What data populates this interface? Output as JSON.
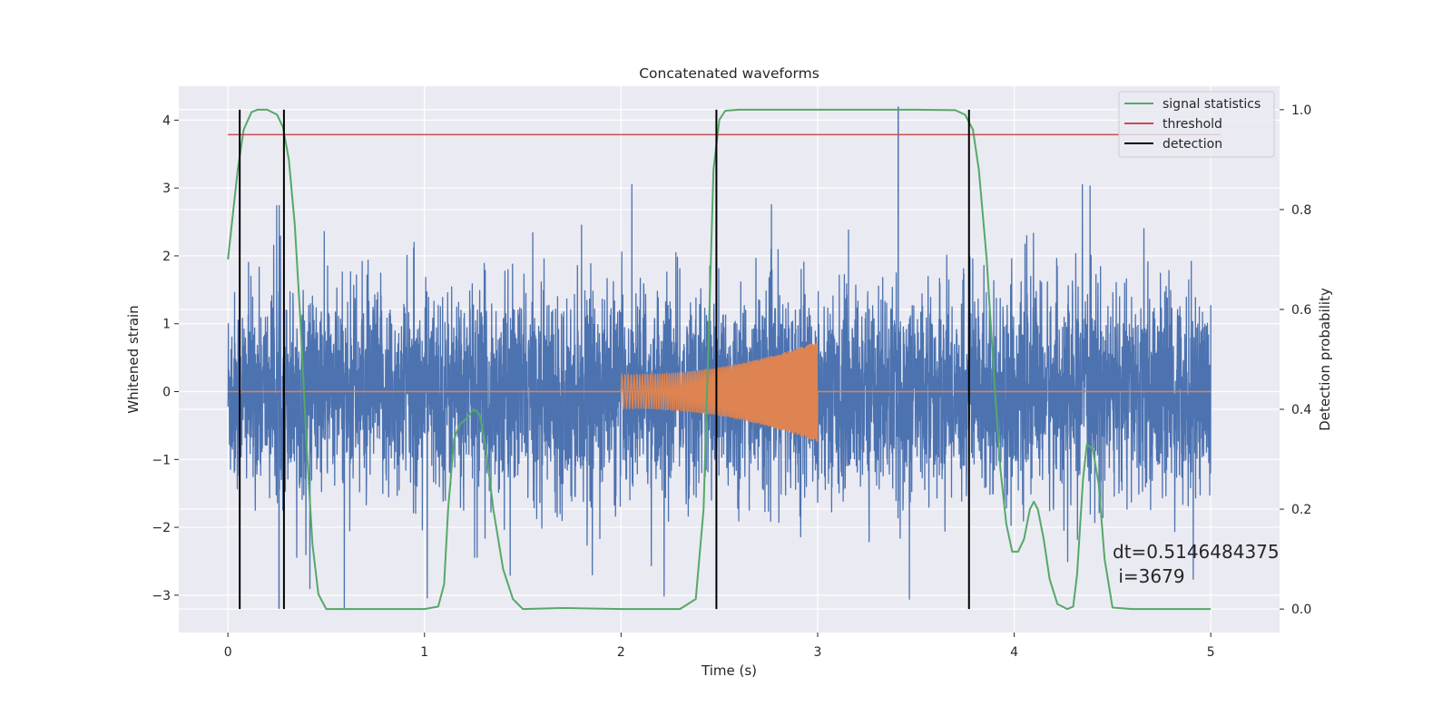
{
  "chart_data": {
    "type": "line",
    "title": "Concatenated waveforms",
    "xlabel": "Time (s)",
    "ylabel": "Whitened strain",
    "ylabel_right": "Detection probability",
    "xlim": [
      -0.25,
      5.35
    ],
    "ylim": [
      -3.55,
      4.5
    ],
    "ylim_right": [
      -0.047,
      1.047
    ],
    "x_ticks": [
      0,
      1,
      2,
      3,
      4,
      5
    ],
    "y_ticks": [
      -3,
      -2,
      -1,
      0,
      1,
      2,
      3,
      4
    ],
    "y_ticks_right": [
      0.0,
      0.2,
      0.4,
      0.6,
      0.8,
      1.0
    ],
    "y_tick_labels": [
      "−3",
      "−2",
      "−1",
      "0",
      "1",
      "2",
      "3",
      "4"
    ],
    "y_tick_labels_right": [
      "0.0",
      "0.2",
      "0.4",
      "0.6",
      "0.8",
      "1.0"
    ],
    "x_tick_labels": [
      "0",
      "1",
      "2",
      "3",
      "4",
      "5"
    ],
    "grid": true,
    "background": "#eaeaf2",
    "legend": {
      "placement": "upper-right",
      "entries": [
        {
          "label": "signal statistics",
          "color": "#55a868"
        },
        {
          "label": "threshold",
          "color": "#c44e52"
        },
        {
          "label": "detection",
          "color": "#000000"
        }
      ]
    },
    "series": [
      {
        "name": "",
        "kind": "noise",
        "axis": "left",
        "color": "#4c72b0",
        "x_range": [
          0,
          5
        ],
        "approx_min": -3.2,
        "approx_max": 4.2,
        "typical_peak": 2.2
      },
      {
        "name": "",
        "kind": "chirp",
        "axis": "left",
        "color": "#dd8452",
        "x_range": [
          2.0,
          3.0
        ],
        "amplitude_start": 0.25,
        "amplitude_end": 0.75,
        "baseline": 0
      },
      {
        "name": "signal statistics",
        "axis": "right",
        "color": "#55a868",
        "x": [
          0.0,
          0.05,
          0.08,
          0.12,
          0.15,
          0.2,
          0.25,
          0.28,
          0.31,
          0.34,
          0.37,
          0.4,
          0.43,
          0.46,
          0.5,
          0.6,
          0.8,
          1.0,
          1.07,
          1.1,
          1.12,
          1.15,
          1.18,
          1.21,
          1.25,
          1.28,
          1.31,
          1.35,
          1.4,
          1.45,
          1.5,
          1.7,
          2.0,
          2.3,
          2.38,
          2.42,
          2.45,
          2.47,
          2.5,
          2.53,
          2.6,
          3.0,
          3.5,
          3.7,
          3.75,
          3.79,
          3.82,
          3.86,
          3.9,
          3.93,
          3.96,
          3.99,
          4.02,
          4.05,
          4.08,
          4.1,
          4.12,
          4.15,
          4.18,
          4.22,
          4.27,
          4.3,
          4.32,
          4.35,
          4.37,
          4.4,
          4.43,
          4.46,
          4.5,
          4.6,
          4.8,
          5.0
        ],
        "y": [
          0.7,
          0.88,
          0.96,
          0.995,
          1.0,
          1.0,
          0.99,
          0.965,
          0.9,
          0.77,
          0.57,
          0.33,
          0.13,
          0.03,
          0.0,
          0.0,
          0.0,
          0.0,
          0.005,
          0.05,
          0.2,
          0.34,
          0.37,
          0.38,
          0.4,
          0.39,
          0.33,
          0.2,
          0.08,
          0.02,
          0.0,
          0.002,
          0.0,
          0.0,
          0.02,
          0.2,
          0.6,
          0.88,
          0.98,
          0.998,
          1.0,
          1.0,
          1.0,
          0.999,
          0.99,
          0.96,
          0.88,
          0.7,
          0.45,
          0.28,
          0.17,
          0.115,
          0.115,
          0.14,
          0.2,
          0.215,
          0.2,
          0.14,
          0.06,
          0.01,
          0.0,
          0.005,
          0.07,
          0.26,
          0.33,
          0.32,
          0.25,
          0.1,
          0.003,
          0.0,
          0.0,
          0.0
        ]
      },
      {
        "name": "threshold",
        "axis": "right",
        "color": "#c44e52",
        "x": [
          0,
          5.05
        ],
        "y": [
          0.95,
          0.95
        ]
      }
    ],
    "detections": [
      0.06,
      0.285,
      2.485,
      3.77
    ],
    "detection_color": "#000000",
    "annotation": "dt=0.5146484375\n i=3679",
    "annotation_lines": [
      "dt=0.5146484375",
      " i=3679"
    ]
  }
}
